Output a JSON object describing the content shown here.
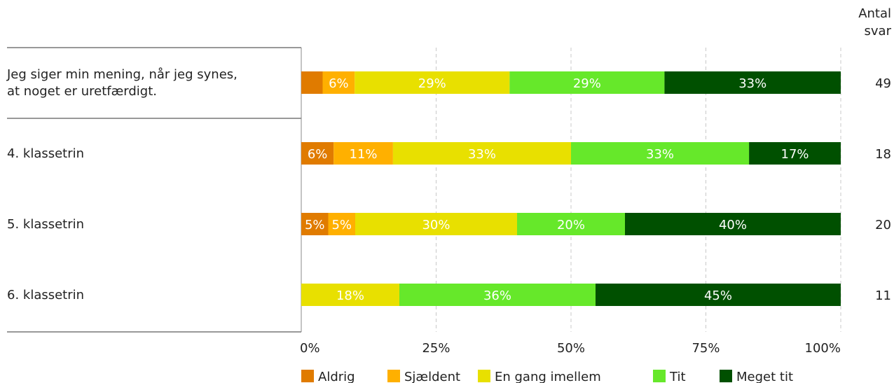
{
  "chart_data": {
    "type": "bar",
    "orientation": "horizontal",
    "stacked": true,
    "count_header": [
      "Antal",
      "svar"
    ],
    "categories": [
      {
        "label_lines": [
          "Jeg siger min mening, når jeg synes,",
          "at noget er uretfærdigt."
        ],
        "count": "49",
        "labels": [
          "",
          "6%",
          "29%",
          "29%",
          "33%"
        ]
      },
      {
        "label_lines": [
          "4. klassetrin"
        ],
        "count": "18",
        "labels": [
          "6%",
          "11%",
          "33%",
          "33%",
          "17%"
        ]
      },
      {
        "label_lines": [
          "5. klassetrin"
        ],
        "count": "20",
        "labels": [
          "5%",
          "5%",
          "30%",
          "20%",
          "40%"
        ]
      },
      {
        "label_lines": [
          "6. klassetrin"
        ],
        "count": "11",
        "labels": [
          "",
          "",
          "18%",
          "36%",
          "45%"
        ]
      }
    ],
    "series": [
      {
        "name": "Aldrig",
        "color": "#e07b00",
        "values": [
          4,
          6,
          5,
          0
        ]
      },
      {
        "name": "Sjældent",
        "color": "#ffb000",
        "values": [
          6,
          11,
          5,
          0
        ]
      },
      {
        "name": "En gang imellem",
        "color": "#e8e000",
        "values": [
          29,
          33,
          30,
          18
        ]
      },
      {
        "name": "Tit",
        "color": "#66e82a",
        "values": [
          29,
          33,
          20,
          36
        ]
      },
      {
        "name": "Meget tit",
        "color": "#005000",
        "values": [
          33,
          17,
          40,
          45
        ]
      }
    ],
    "xlim": [
      0,
      100
    ],
    "xticks": [
      "0%",
      "25%",
      "50%",
      "75%",
      "100%"
    ],
    "legend_position": "bottom",
    "grid": "vertical dashed"
  }
}
